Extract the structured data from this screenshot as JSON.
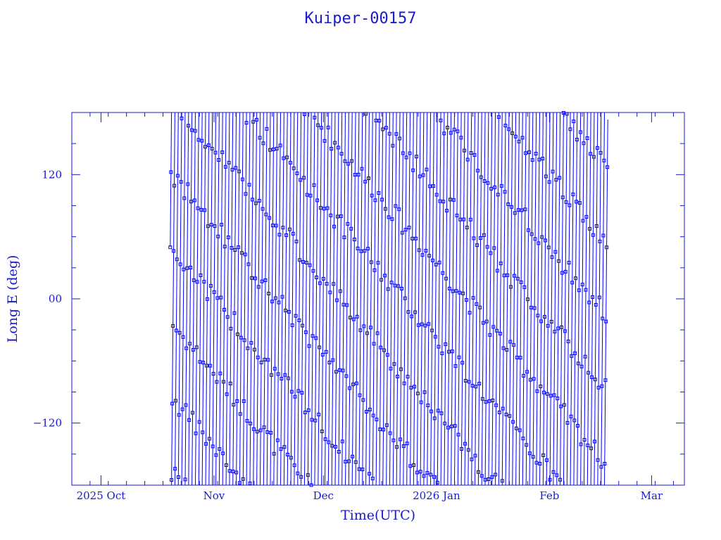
{
  "chart_data": {
    "type": "line",
    "title": "Kuiper-00157",
    "xlabel": "Time(UTC)",
    "ylabel": "Long E (deg)",
    "x_range": [
      "2025-09-23",
      "2026-03-10"
    ],
    "ylim": [
      -180,
      180
    ],
    "y_ticks": [
      -120,
      0,
      120
    ],
    "y_tick_labels": [
      "−120",
      "00",
      "120"
    ],
    "x_ticks": [
      {
        "date": "2025-10-01",
        "label": "2025 Oct"
      },
      {
        "date": "2025-11-01",
        "label": "Nov"
      },
      {
        "date": "2025-12-01",
        "label": "Dec"
      },
      {
        "date": "2026-01-01",
        "label": "2026 Jan"
      },
      {
        "date": "2026-02-01",
        "label": "Feb"
      },
      {
        "date": "2026-03-01",
        "label": "Mar"
      }
    ],
    "grid": false,
    "series_color": "#0000ff",
    "series": [
      {
        "start": "2025-10-20",
        "end": "2026-02-17",
        "wrap_period_days": 0.935,
        "start_longitude": 50,
        "sample_interval_days": 0.185,
        "description_of_trace": "longitude ramps linearly and wraps from +180 to -180 with small square markers at samples"
      }
    ]
  }
}
